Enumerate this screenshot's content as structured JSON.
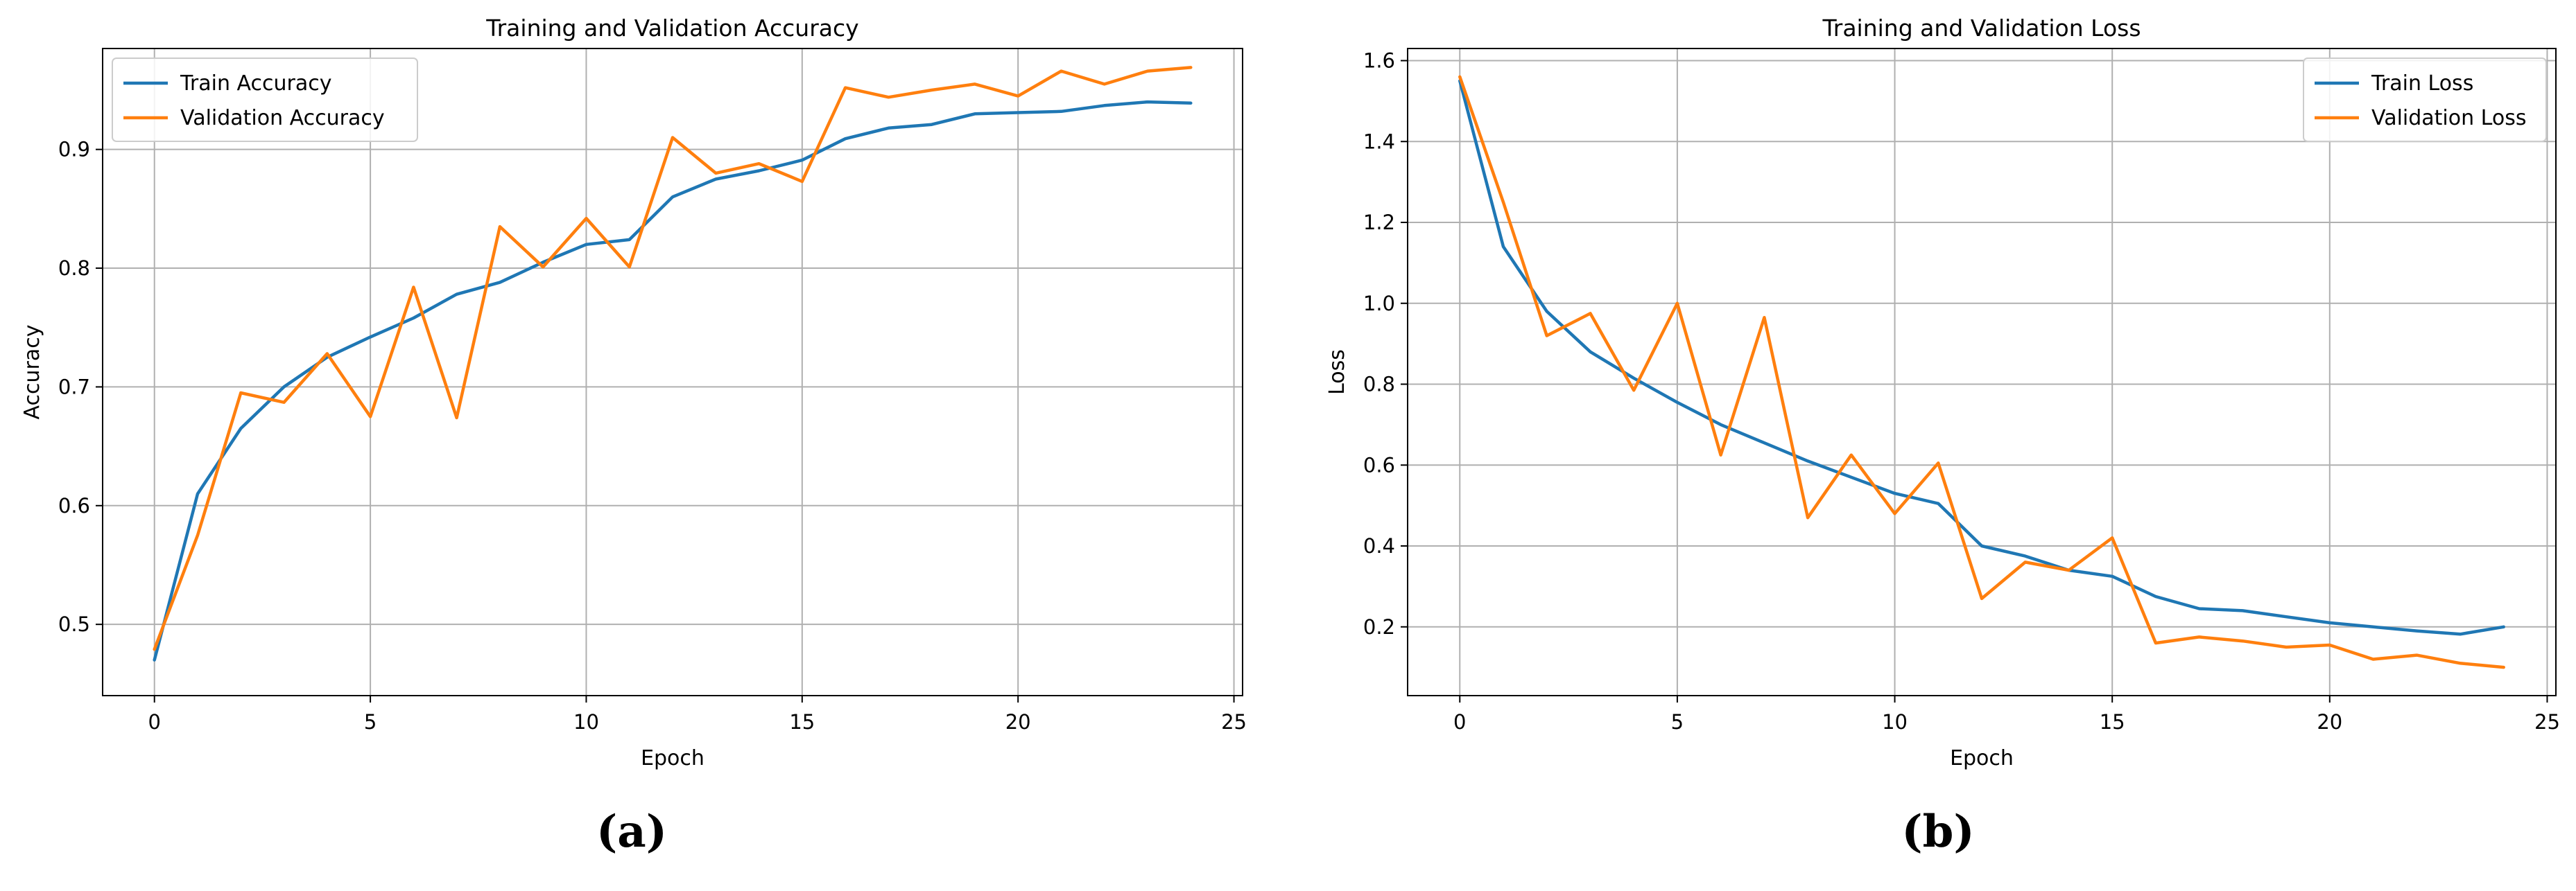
{
  "chart_data": [
    {
      "type": "line",
      "title": "Training and Validation Accuracy",
      "xlabel": "Epoch",
      "ylabel": "Accuracy",
      "caption": "(a)",
      "xlim": [
        -1.2,
        25.2
      ],
      "ylim": [
        0.44,
        0.985
      ],
      "xticks": [
        0,
        5,
        10,
        15,
        20,
        25
      ],
      "yticks": [
        0.5,
        0.6,
        0.7,
        0.8,
        0.9
      ],
      "ytick_labels": [
        "0.5",
        "0.6",
        "0.7",
        "0.8",
        "0.9"
      ],
      "grid": true,
      "legend_position": "upper-left",
      "x": [
        0,
        1,
        2,
        3,
        4,
        5,
        6,
        7,
        8,
        9,
        10,
        11,
        12,
        13,
        14,
        15,
        16,
        17,
        18,
        19,
        20,
        21,
        22,
        23,
        24
      ],
      "series": [
        {
          "name": "Train Accuracy",
          "color": "#1f77b4",
          "values": [
            0.47,
            0.61,
            0.665,
            0.7,
            0.725,
            0.742,
            0.758,
            0.778,
            0.788,
            0.805,
            0.82,
            0.824,
            0.86,
            0.875,
            0.882,
            0.891,
            0.909,
            0.918,
            0.921,
            0.93,
            0.931,
            0.932,
            0.937,
            0.94,
            0.939
          ]
        },
        {
          "name": "Validation Accuracy",
          "color": "#ff7f0e",
          "values": [
            0.479,
            0.575,
            0.695,
            0.687,
            0.728,
            0.675,
            0.784,
            0.674,
            0.835,
            0.801,
            0.842,
            0.801,
            0.91,
            0.88,
            0.888,
            0.873,
            0.952,
            0.944,
            0.95,
            0.955,
            0.945,
            0.966,
            0.955,
            0.966,
            0.969
          ]
        }
      ]
    },
    {
      "type": "line",
      "title": "Training and Validation Loss",
      "xlabel": "Epoch",
      "ylabel": "Loss",
      "caption": "(b)",
      "xlim": [
        -1.2,
        25.2
      ],
      "ylim": [
        0.03,
        1.63
      ],
      "xticks": [
        0,
        5,
        10,
        15,
        20,
        25
      ],
      "yticks": [
        0.2,
        0.4,
        0.6,
        0.8,
        1.0,
        1.2,
        1.4,
        1.6
      ],
      "ytick_labels": [
        "0.2",
        "0.4",
        "0.6",
        "0.8",
        "1.0",
        "1.2",
        "1.4",
        "1.6"
      ],
      "grid": true,
      "legend_position": "upper-right",
      "x": [
        0,
        1,
        2,
        3,
        4,
        5,
        6,
        7,
        8,
        9,
        10,
        11,
        12,
        13,
        14,
        15,
        16,
        17,
        18,
        19,
        20,
        21,
        22,
        23,
        24
      ],
      "series": [
        {
          "name": "Train Loss",
          "color": "#1f77b4",
          "values": [
            1.55,
            1.14,
            0.98,
            0.88,
            0.815,
            0.755,
            0.7,
            0.655,
            0.61,
            0.57,
            0.53,
            0.505,
            0.4,
            0.375,
            0.34,
            0.325,
            0.275,
            0.245,
            0.24,
            0.225,
            0.21,
            0.2,
            0.19,
            0.182,
            0.2
          ]
        },
        {
          "name": "Validation Loss",
          "color": "#ff7f0e",
          "values": [
            1.56,
            1.25,
            0.92,
            0.975,
            0.785,
            1.0,
            0.625,
            0.965,
            0.47,
            0.625,
            0.48,
            0.605,
            0.27,
            0.36,
            0.34,
            0.42,
            0.16,
            0.175,
            0.165,
            0.15,
            0.155,
            0.12,
            0.13,
            0.11,
            0.1
          ]
        }
      ]
    }
  ]
}
